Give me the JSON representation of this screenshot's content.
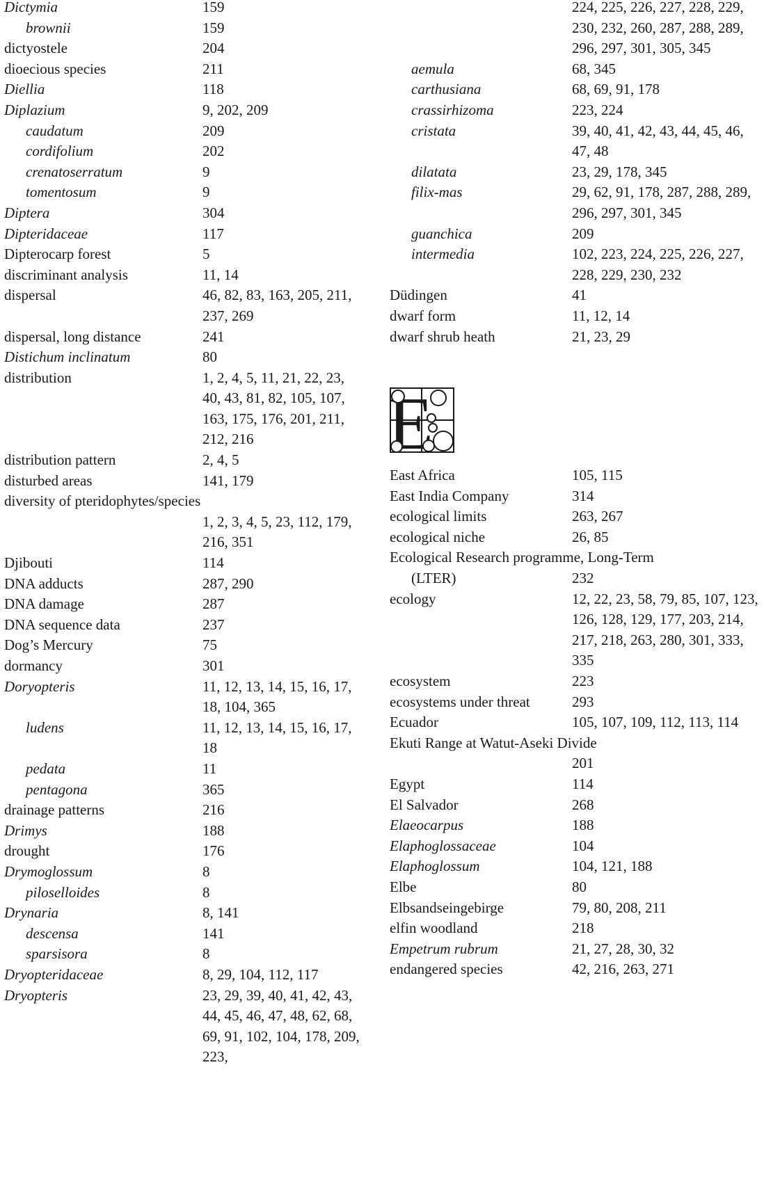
{
  "left_column": [
    {
      "term": "Dictymia",
      "italic": true,
      "pages": "159"
    },
    {
      "term": "brownii",
      "italic": true,
      "sub": true,
      "pages": "159"
    },
    {
      "term": "dictyostele",
      "pages": "204"
    },
    {
      "term": "dioecious species",
      "pages": "211"
    },
    {
      "term": "Diellia",
      "italic": true,
      "pages": "118"
    },
    {
      "term": "Diplazium",
      "italic": true,
      "pages": "9, 202, 209"
    },
    {
      "term": "caudatum",
      "italic": true,
      "sub": true,
      "pages": "209"
    },
    {
      "term": "cordifolium",
      "italic": true,
      "sub": true,
      "pages": "202"
    },
    {
      "term": "crenatoserratum",
      "italic": true,
      "sub": true,
      "pages": "9"
    },
    {
      "term": "tomentosum",
      "italic": true,
      "sub": true,
      "pages": "9"
    },
    {
      "term": "Diptera",
      "italic": true,
      "pages": "304"
    },
    {
      "term": "Dipteridaceae",
      "italic": true,
      "pages": "117"
    },
    {
      "term": "Dipterocarp forest",
      "pages": "5"
    },
    {
      "term": "discriminant analysis",
      "pages": "11, 14"
    },
    {
      "term": "dispersal",
      "pages": "46, 82, 83, 163, 205, 211, 237, 269"
    },
    {
      "term": "dispersal, long distance",
      "pages": "241"
    },
    {
      "term": "Distichum inclinatum",
      "italic": true,
      "pages": "80"
    },
    {
      "term": "distribution",
      "pages": "1, 2, 4, 5, 11, 21, 22, 23, 40, 43, 81, 82, 105, 107, 163, 175, 176, 201, 211, 212, 216"
    },
    {
      "term": "distribution pattern",
      "pages": "2, 4, 5"
    },
    {
      "term": "disturbed areas",
      "pages": "141, 179"
    },
    {
      "term": "diversity of pteridophytes/species",
      "full": true
    },
    {
      "term": "",
      "pages": "1, 2, 3, 4, 5, 23, 112, 179, 216, 351"
    },
    {
      "term": "Djibouti",
      "pages": "114"
    },
    {
      "term": "DNA adducts",
      "pages": "287, 290"
    },
    {
      "term": "DNA damage",
      "pages": "287"
    },
    {
      "term": "DNA sequence data",
      "pages": "237"
    },
    {
      "term": "Dog’s Mercury",
      "pages": "75"
    },
    {
      "term": "dormancy",
      "pages": "301"
    },
    {
      "term": "Doryopteris",
      "italic": true,
      "pages": "11, 12, 13, 14, 15, 16, 17, 18, 104, 365"
    },
    {
      "term": "ludens",
      "italic": true,
      "sub": true,
      "pages": "11, 12, 13, 14, 15, 16, 17, 18"
    },
    {
      "term": "pedata",
      "italic": true,
      "sub": true,
      "pages": "11"
    },
    {
      "term": "pentagona",
      "italic": true,
      "sub": true,
      "pages": "365"
    },
    {
      "term": "drainage patterns",
      "pages": "216"
    },
    {
      "term": "Drimys",
      "italic": true,
      "pages": "188"
    },
    {
      "term": "drought",
      "pages": "176"
    },
    {
      "term": "Drymoglossum",
      "italic": true,
      "pages": "8"
    },
    {
      "term": "piloselloides",
      "italic": true,
      "sub": true,
      "pages": "8"
    },
    {
      "term": "Drynaria",
      "italic": true,
      "pages": "8, 141"
    },
    {
      "term": "descensa",
      "italic": true,
      "sub": true,
      "pages": "141"
    },
    {
      "term": "sparsisora",
      "italic": true,
      "sub": true,
      "pages": "8"
    },
    {
      "term": "Dryopteridaceae",
      "italic": true,
      "pages": "8, 29, 104, 112, 117"
    },
    {
      "term": "Dryopteris",
      "italic": true,
      "pages": "23, 29, 39, 40, 41, 42, 43, 44, 45, 46, 47, 48, 62, 68, 69, 91, 102, 104, 178, 209, 223,"
    }
  ],
  "right_column_top": [
    {
      "term": "",
      "pages": "224, 225, 226, 227, 228, 229, 230, 232, 260, 287, 288, 289, 296, 297, 301, 305, 345"
    },
    {
      "term": "aemula",
      "italic": true,
      "sub": true,
      "pages": "68, 345"
    },
    {
      "term": "carthusiana",
      "italic": true,
      "sub": true,
      "pages": "68, 69, 91, 178"
    },
    {
      "term": "crassirhizoma",
      "italic": true,
      "sub": true,
      "pages": "223, 224"
    },
    {
      "term": "cristata",
      "italic": true,
      "sub": true,
      "pages": "39, 40, 41, 42, 43, 44, 45, 46, 47, 48"
    },
    {
      "term": "dilatata",
      "italic": true,
      "sub": true,
      "pages": "23, 29, 178, 345"
    },
    {
      "term": "filix-mas",
      "italic": true,
      "sub": true,
      "pages": "29, 62, 91, 178, 287, 288, 289, 296, 297, 301, 345"
    },
    {
      "term": "guanchica",
      "italic": true,
      "sub": true,
      "pages": "209"
    },
    {
      "term": "intermedia",
      "italic": true,
      "sub": true,
      "pages": "102, 223, 224, 225, 226, 227, 228, 229, 230, 232"
    },
    {
      "term": "Düdingen",
      "pages": "41"
    },
    {
      "term": "dwarf form",
      "pages": "11, 12, 14"
    },
    {
      "term": "dwarf shrub heath",
      "pages": "21, 23, 29"
    }
  ],
  "section_letter": "E",
  "right_column_bottom": [
    {
      "term": "East Africa",
      "pages": "105, 115"
    },
    {
      "term": "East India Company",
      "pages": "314"
    },
    {
      "term": "ecological limits",
      "pages": "263, 267"
    },
    {
      "term": "ecological niche",
      "pages": "26, 85"
    },
    {
      "term": "Ecological Research programme, Long-Term",
      "full": true
    },
    {
      "term": "(LTER)",
      "sub": true,
      "pages": "232"
    },
    {
      "term": "ecology",
      "pages": "12, 22, 23, 58, 79, 85, 107, 123, 126, 128, 129, 177, 203, 214, 217, 218, 263, 280, 301, 333, 335"
    },
    {
      "term": "ecosystem",
      "pages": "223"
    },
    {
      "term": "ecosystems under threat",
      "pages": "293"
    },
    {
      "term": "Ecuador",
      "pages": "105, 107, 109, 112, 113, 114"
    },
    {
      "term": "Ekuti Range at Watut-Aseki Divide",
      "full": true
    },
    {
      "term": "",
      "pages": "201"
    },
    {
      "term": "Egypt",
      "pages": "114"
    },
    {
      "term": "El Salvador",
      "pages": "268"
    },
    {
      "term": "Elaeocarpus",
      "italic": true,
      "pages": "188"
    },
    {
      "term": "Elaphoglossaceae",
      "italic": true,
      "pages": "104"
    },
    {
      "term": "Elaphoglossum",
      "italic": true,
      "pages": "104, 121, 188"
    },
    {
      "term": "Elbe",
      "pages": "80"
    },
    {
      "term": "Elbsandseingebirge",
      "pages": "79, 80, 208, 211"
    },
    {
      "term": "elfin woodland",
      "pages": "218"
    },
    {
      "term": "Empetrum rubrum",
      "italic": true,
      "pages": "21, 27, 28, 30, 32"
    },
    {
      "term": "endangered species",
      "pages": "42, 216, 263, 271"
    }
  ]
}
